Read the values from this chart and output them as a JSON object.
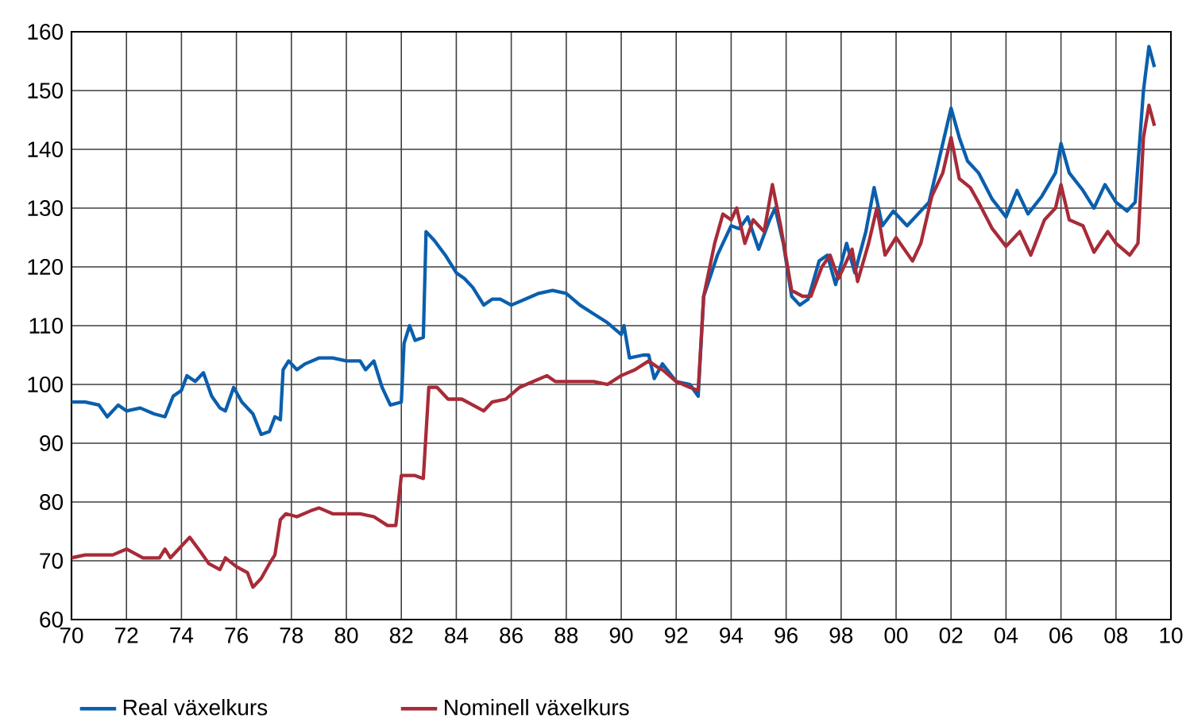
{
  "chart_data": {
    "type": "line",
    "grid": true,
    "legend": "bottom left",
    "line_style": "solid",
    "marker": "none",
    "xlim": [
      1970,
      2010
    ],
    "ylim": [
      60,
      160
    ],
    "xticks": [
      {
        "value": 1970,
        "label": "70"
      },
      {
        "value": 1972,
        "label": "72"
      },
      {
        "value": 1974,
        "label": "74"
      },
      {
        "value": 1976,
        "label": "76"
      },
      {
        "value": 1978,
        "label": "78"
      },
      {
        "value": 1980,
        "label": "80"
      },
      {
        "value": 1982,
        "label": "82"
      },
      {
        "value": 1984,
        "label": "84"
      },
      {
        "value": 1986,
        "label": "86"
      },
      {
        "value": 1988,
        "label": "88"
      },
      {
        "value": 1990,
        "label": "90"
      },
      {
        "value": 1992,
        "label": "92"
      },
      {
        "value": 1994,
        "label": "94"
      },
      {
        "value": 1996,
        "label": "96"
      },
      {
        "value": 1998,
        "label": "98"
      },
      {
        "value": 2000,
        "label": "00"
      },
      {
        "value": 2002,
        "label": "02"
      },
      {
        "value": 2004,
        "label": "04"
      },
      {
        "value": 2006,
        "label": "06"
      },
      {
        "value": 2008,
        "label": "08"
      },
      {
        "value": 2010,
        "label": "10"
      }
    ],
    "yticks": [
      60,
      70,
      80,
      90,
      100,
      110,
      120,
      130,
      140,
      150,
      160
    ],
    "series": [
      {
        "name": "Real växelkurs",
        "color": "#0a5fad",
        "x": [
          1970,
          1970.5,
          1971,
          1971.3,
          1971.7,
          1972,
          1972.5,
          1973,
          1973.4,
          1973.7,
          1974,
          1974.2,
          1974.5,
          1974.8,
          1975.1,
          1975.4,
          1975.6,
          1975.9,
          1976.2,
          1976.6,
          1976.9,
          1977.2,
          1977.4,
          1977.6,
          1977.7,
          1977.9,
          1978.2,
          1978.5,
          1979,
          1979.5,
          1980,
          1980.5,
          1980.7,
          1981,
          1981.3,
          1981.6,
          1982,
          1982.1,
          1982.3,
          1982.5,
          1982.8,
          1982.9,
          1983.2,
          1983.6,
          1984,
          1984.3,
          1984.6,
          1985,
          1985.3,
          1985.6,
          1986,
          1986.5,
          1987,
          1987.5,
          1988,
          1988.5,
          1989,
          1989.5,
          1990,
          1990.1,
          1990.3,
          1990.8,
          1991,
          1991.2,
          1991.5,
          1992,
          1992.5,
          1992.8,
          1993,
          1993.5,
          1994,
          1994.3,
          1994.6,
          1995,
          1995.4,
          1995.6,
          1995.9,
          1996.2,
          1996.5,
          1996.8,
          1997.2,
          1997.5,
          1997.8,
          1998.2,
          1998.5,
          1998.9,
          1999.2,
          1999.5,
          1999.9,
          2000.4,
          2000.8,
          2001.2,
          2001.5,
          2001.8,
          2002,
          2002.3,
          2002.6,
          2003,
          2003.5,
          2004,
          2004.4,
          2004.8,
          2005.3,
          2005.8,
          2006,
          2006.3,
          2006.8,
          2007.2,
          2007.6,
          2008,
          2008.4,
          2008.7,
          2009,
          2009.2,
          2009.4
        ],
        "values": [
          97,
          97,
          96.5,
          94.5,
          96.5,
          95.5,
          96,
          95,
          94.5,
          98,
          99,
          101.5,
          100.5,
          102,
          98,
          96,
          95.5,
          99.5,
          97,
          95,
          91.5,
          92,
          94.5,
          94,
          102.5,
          104,
          102.5,
          103.5,
          104.5,
          104.5,
          104,
          104,
          102.5,
          104,
          99.5,
          96.5,
          97,
          107,
          110,
          107.5,
          108,
          126,
          124.5,
          122,
          119,
          118,
          116.5,
          113.5,
          114.5,
          114.5,
          113.5,
          114.5,
          115.5,
          116,
          115.5,
          113.5,
          112,
          110.5,
          108.5,
          110,
          104.5,
          105,
          105,
          101,
          103.5,
          100.5,
          100,
          98,
          115,
          122,
          127,
          126.5,
          128.5,
          123,
          128,
          130,
          124,
          115,
          113.5,
          114.5,
          121,
          122,
          117,
          124,
          119,
          126,
          133.5,
          127,
          129.5,
          127,
          129,
          131,
          137,
          143,
          147,
          142,
          138,
          136,
          131.5,
          128.5,
          133,
          129,
          132,
          136,
          141,
          136,
          133,
          130,
          134,
          131,
          129.5,
          131,
          150,
          157.5,
          154
        ]
      },
      {
        "name": "Nominell växelkurs",
        "color": "#a82b38",
        "x": [
          1970,
          1970.5,
          1971.5,
          1972,
          1972.6,
          1973.2,
          1973.4,
          1973.6,
          1974,
          1974.3,
          1974.7,
          1975,
          1975.4,
          1975.6,
          1976,
          1976.4,
          1976.6,
          1976.9,
          1977.2,
          1977.4,
          1977.6,
          1977.8,
          1978.2,
          1978.7,
          1979,
          1979.5,
          1980,
          1980.5,
          1981,
          1981.5,
          1981.8,
          1982,
          1982.5,
          1982.8,
          1983,
          1983.3,
          1983.7,
          1984.2,
          1984.6,
          1985,
          1985.3,
          1985.8,
          1986.3,
          1986.8,
          1987.3,
          1987.6,
          1988,
          1988.5,
          1989,
          1989.5,
          1990,
          1990.5,
          1991,
          1991.3,
          1991.5,
          1992,
          1992.5,
          1992.8,
          1993,
          1993.4,
          1993.7,
          1994,
          1994.2,
          1994.5,
          1994.8,
          1995.2,
          1995.5,
          1995.8,
          1996.2,
          1996.6,
          1996.9,
          1997.3,
          1997.6,
          1997.9,
          1998.4,
          1998.6,
          1999,
          1999.3,
          1999.6,
          2000,
          2000.6,
          2000.9,
          2001.3,
          2001.7,
          2002,
          2002.3,
          2002.7,
          2003,
          2003.5,
          2004,
          2004.5,
          2004.9,
          2005.4,
          2005.8,
          2006,
          2006.3,
          2006.8,
          2007.2,
          2007.7,
          2008,
          2008.5,
          2008.8,
          2009,
          2009.2,
          2009.4
        ],
        "values": [
          70.5,
          71,
          71,
          72,
          70.5,
          70.5,
          72,
          70.5,
          72.5,
          74,
          71.5,
          69.5,
          68.5,
          70.5,
          69,
          68,
          65.5,
          67,
          69.5,
          71,
          77,
          78,
          77.5,
          78.5,
          79,
          78,
          78,
          78,
          77.5,
          76,
          76,
          84.5,
          84.5,
          84,
          99.5,
          99.5,
          97.5,
          97.5,
          96.5,
          95.5,
          97,
          97.5,
          99.5,
          100.5,
          101.5,
          100.5,
          100.5,
          100.5,
          100.5,
          100,
          101.5,
          102.5,
          104,
          103,
          102.5,
          100.5,
          99.5,
          99,
          115,
          124,
          129,
          128,
          130,
          124,
          128,
          126,
          134,
          127,
          116,
          115,
          115,
          120,
          122,
          118,
          123,
          117.5,
          124,
          130,
          122,
          125,
          121,
          124,
          132,
          136,
          142,
          135,
          133.5,
          131,
          126.5,
          123.5,
          126,
          122,
          128,
          130,
          134,
          128,
          127,
          122.5,
          126,
          124,
          122,
          124,
          142,
          147.5,
          144
        ]
      }
    ]
  }
}
